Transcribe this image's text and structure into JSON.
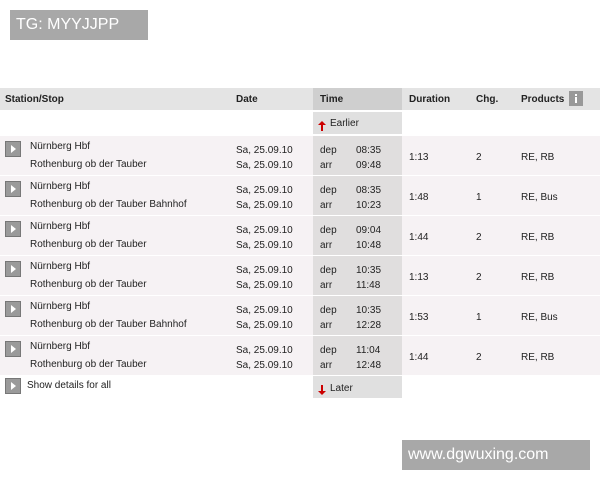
{
  "watermark_top": "TG: MYYJJPP",
  "watermark_bottom": "www.dgwuxing.com",
  "table": {
    "headers": [
      "Station/Stop",
      "Date",
      "Time",
      "Duration",
      "Chg.",
      "Products"
    ],
    "earlier": "Earlier",
    "later": "Later",
    "show_all": "Show details for all",
    "rows": [
      {
        "from": "Nürnberg Hbf",
        "to": "Rothenburg ob der Tauber",
        "dep_date": "Sa, 25.09.10",
        "arr_date": "Sa, 25.09.10",
        "dep_label": "dep",
        "dep_time": "08:35",
        "arr_label": "arr",
        "arr_time": "09:48",
        "duration": "1:13",
        "changes": 2,
        "products": "RE, RB"
      },
      {
        "from": "Nürnberg Hbf",
        "to": "Rothenburg ob der Tauber Bahnhof",
        "dep_date": "Sa, 25.09.10",
        "arr_date": "Sa, 25.09.10",
        "dep_label": "dep",
        "dep_time": "08:35",
        "arr_label": "arr",
        "arr_time": "10:23",
        "duration": "1:48",
        "changes": 1,
        "products": "RE, Bus"
      },
      {
        "from": "Nürnberg Hbf",
        "to": "Rothenburg ob der Tauber",
        "dep_date": "Sa, 25.09.10",
        "arr_date": "Sa, 25.09.10",
        "dep_label": "dep",
        "dep_time": "09:04",
        "arr_label": "arr",
        "arr_time": "10:48",
        "duration": "1:44",
        "changes": 2,
        "products": "RE, RB"
      },
      {
        "from": "Nürnberg Hbf",
        "to": "Rothenburg ob der Tauber",
        "dep_date": "Sa, 25.09.10",
        "arr_date": "Sa, 25.09.10",
        "dep_label": "dep",
        "dep_time": "10:35",
        "arr_label": "arr",
        "arr_time": "11:48",
        "duration": "1:13",
        "changes": 2,
        "products": "RE, RB"
      },
      {
        "from": "Nürnberg Hbf",
        "to": "Rothenburg ob der Tauber Bahnhof",
        "dep_date": "Sa, 25.09.10",
        "arr_date": "Sa, 25.09.10",
        "dep_label": "dep",
        "dep_time": "10:35",
        "arr_label": "arr",
        "arr_time": "12:28",
        "duration": "1:53",
        "changes": 1,
        "products": "RE, Bus"
      },
      {
        "from": "Nürnberg Hbf",
        "to": "Rothenburg ob der Tauber",
        "dep_date": "Sa, 25.09.10",
        "arr_date": "Sa, 25.09.10",
        "dep_label": "dep",
        "dep_time": "11:04",
        "arr_label": "arr",
        "arr_time": "12:48",
        "duration": "1:44",
        "changes": 2,
        "products": "RE, RB"
      }
    ]
  }
}
